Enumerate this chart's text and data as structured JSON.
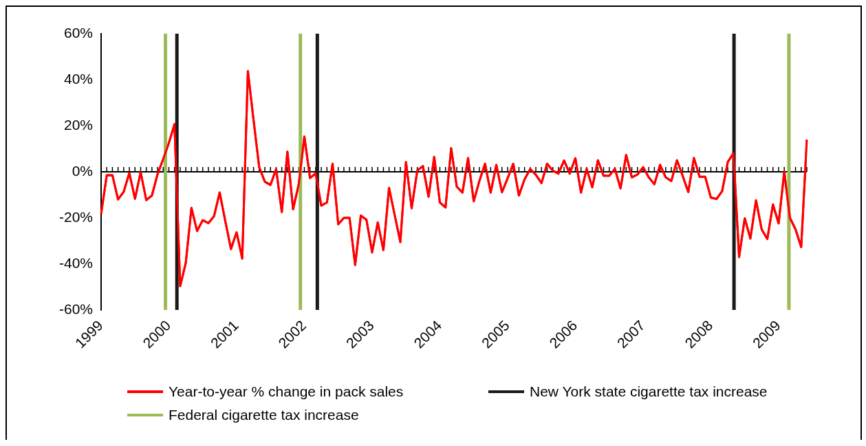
{
  "chart_data": {
    "type": "line",
    "x": [
      "1999-01",
      "1999-02",
      "1999-03",
      "1999-04",
      "1999-05",
      "1999-06",
      "1999-07",
      "1999-08",
      "1999-09",
      "1999-10",
      "1999-11",
      "1999-12",
      "2000-01",
      "2000-02",
      "2000-03",
      "2000-04",
      "2000-05",
      "2000-06",
      "2000-07",
      "2000-08",
      "2000-09",
      "2000-10",
      "2000-11",
      "2000-12",
      "2001-01",
      "2001-02",
      "2001-03",
      "2001-04",
      "2001-05",
      "2001-06",
      "2001-07",
      "2001-08",
      "2001-09",
      "2001-10",
      "2001-11",
      "2001-12",
      "2002-01",
      "2002-02",
      "2002-03",
      "2002-04",
      "2002-05",
      "2002-06",
      "2002-07",
      "2002-08",
      "2002-09",
      "2002-10",
      "2002-11",
      "2002-12",
      "2003-01",
      "2003-02",
      "2003-03",
      "2003-04",
      "2003-05",
      "2003-06",
      "2003-07",
      "2003-08",
      "2003-09",
      "2003-10",
      "2003-11",
      "2003-12",
      "2004-01",
      "2004-02",
      "2004-03",
      "2004-04",
      "2004-05",
      "2004-06",
      "2004-07",
      "2004-08",
      "2004-09",
      "2004-10",
      "2004-11",
      "2004-12",
      "2005-01",
      "2005-02",
      "2005-03",
      "2005-04",
      "2005-05",
      "2005-06",
      "2005-07",
      "2005-08",
      "2005-09",
      "2005-10",
      "2005-11",
      "2005-12",
      "2006-01",
      "2006-02",
      "2006-03",
      "2006-04",
      "2006-05",
      "2006-06",
      "2006-07",
      "2006-08",
      "2006-09",
      "2006-10",
      "2006-11",
      "2006-12",
      "2007-01",
      "2007-02",
      "2007-03",
      "2007-04",
      "2007-05",
      "2007-06",
      "2007-07",
      "2007-08",
      "2007-09",
      "2007-10",
      "2007-11",
      "2007-12",
      "2008-01",
      "2008-02",
      "2008-03",
      "2008-04",
      "2008-05",
      "2008-06",
      "2008-07",
      "2008-08",
      "2008-09",
      "2008-10",
      "2008-11",
      "2008-12",
      "2009-01",
      "2009-02",
      "2009-03",
      "2009-04",
      "2009-05",
      "2009-06"
    ],
    "series": [
      {
        "name": "Year-to-year % change in pack sales",
        "color": "#ff0000",
        "values": [
          -18.3,
          -1.5,
          -1.5,
          -12,
          -8.7,
          -0.5,
          -11.7,
          -0.2,
          -12.3,
          -10.3,
          -1,
          5.5,
          12.5,
          20.7,
          -49.7,
          -39.5,
          -15.7,
          -25.7,
          -21,
          -22.3,
          -19.3,
          -9,
          -21.5,
          -33.5,
          -26.3,
          -37.7,
          43.7,
          22.5,
          2,
          -4.3,
          -5.7,
          1.2,
          -17.5,
          8.7,
          -16.3,
          -5.5,
          15.3,
          -2.7,
          -0.7,
          -14.7,
          -13.3,
          3.5,
          -22.8,
          -20,
          -20,
          -40.5,
          -19,
          -20.8,
          -35,
          -22,
          -34,
          -7,
          -18.8,
          -30.5,
          4.2,
          -15.8,
          0.5,
          2.5,
          -10.8,
          6.5,
          -13.3,
          -15.5,
          10.2,
          -6.5,
          -9,
          6,
          -12.8,
          -4,
          3.5,
          -9,
          3,
          -8.9,
          -2.8,
          3.5,
          -10.3,
          -3.3,
          1.2,
          -1.3,
          -4.9,
          3.5,
          0.5,
          -0.8,
          4.9,
          -0.8,
          5.9,
          -9,
          1.3,
          -6.7,
          5,
          -1.7,
          -1.7,
          1.3,
          -7.2,
          7.3,
          -2.4,
          -1.2,
          2,
          -2.4,
          -5.4,
          3,
          -2.4,
          -4,
          5,
          -1.7,
          -8.8,
          6,
          -2.2,
          -2.2,
          -11.2,
          -11.8,
          -8.4,
          4.3,
          8,
          -37,
          -20.2,
          -29,
          -12.4,
          -25,
          -29.2,
          -14.2,
          -22.4,
          0,
          -20,
          -25,
          -32.7,
          14
        ]
      }
    ],
    "xlim": [
      "1999-01",
      "2009-06"
    ],
    "xticks": [
      "1999",
      "2000",
      "2001",
      "2002",
      "2003",
      "2004",
      "2005",
      "2006",
      "2007",
      "2008",
      "2009"
    ],
    "ylim": [
      -60,
      60
    ],
    "yticks": [
      {
        "value": -60,
        "label": "-60%"
      },
      {
        "value": -40,
        "label": "-40%"
      },
      {
        "value": -20,
        "label": "-20%"
      },
      {
        "value": 0,
        "label": "0%"
      },
      {
        "value": 20,
        "label": "20%"
      },
      {
        "value": 40,
        "label": "40%"
      },
      {
        "value": 60,
        "label": "60%"
      }
    ],
    "ref_lines": [
      {
        "axis": "x",
        "value": "2000-02-14",
        "label": "New York state cigarette tax increase",
        "color": "#1a1a1a"
      },
      {
        "axis": "x",
        "value": "2002-03-10",
        "color": "#1a1a1a"
      },
      {
        "axis": "x",
        "value": "2008-05-04",
        "color": "#1a1a1a"
      },
      {
        "axis": "x",
        "value": "1999-12-13",
        "label": "Federal cigarette tax increase",
        "color": "#9bbb59"
      },
      {
        "axis": "x",
        "value": "2001-12-10",
        "color": "#9bbb59"
      },
      {
        "axis": "x",
        "value": "2009-02-26",
        "color": "#9bbb59"
      }
    ],
    "legend": "bottom"
  }
}
